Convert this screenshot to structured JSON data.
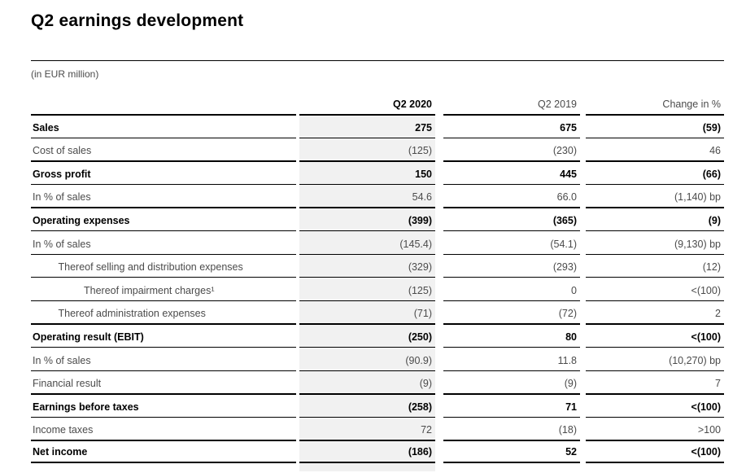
{
  "page": {
    "title": "Q2 earnings development",
    "unit_note": "(in EUR million)"
  },
  "table": {
    "header": {
      "label": "",
      "col1": "Q2 2020",
      "col2": "Q2 2019",
      "col3": "Change in %"
    },
    "rows": [
      {
        "label": "Sales",
        "q2_2020": "275",
        "q2_2019": "675",
        "change": "(59)",
        "bold": true,
        "indent": 0
      },
      {
        "label": "Cost of sales",
        "q2_2020": "(125)",
        "q2_2019": "(230)",
        "change": "46",
        "bold": false,
        "indent": 0
      },
      {
        "label": "Gross profit",
        "q2_2020": "150",
        "q2_2019": "445",
        "change": "(66)",
        "bold": true,
        "indent": 0
      },
      {
        "label": "In % of sales",
        "q2_2020": "54.6",
        "q2_2019": "66.0",
        "change": "(1,140) bp",
        "bold": false,
        "indent": 0
      },
      {
        "label": "Operating expenses",
        "q2_2020": "(399)",
        "q2_2019": "(365)",
        "change": "(9)",
        "bold": true,
        "indent": 0
      },
      {
        "label": "In % of sales",
        "q2_2020": "(145.4)",
        "q2_2019": "(54.1)",
        "change": "(9,130) bp",
        "bold": false,
        "indent": 0
      },
      {
        "label": "Thereof selling and distribution expenses",
        "q2_2020": "(329)",
        "q2_2019": "(293)",
        "change": "(12)",
        "bold": false,
        "indent": 1
      },
      {
        "label": "Thereof impairment charges¹",
        "q2_2020": "(125)",
        "q2_2019": "0",
        "change": "<(100)",
        "bold": false,
        "indent": 2
      },
      {
        "label": "Thereof administration expenses",
        "q2_2020": "(71)",
        "q2_2019": "(72)",
        "change": "2",
        "bold": false,
        "indent": 1
      },
      {
        "label": "Operating result (EBIT)",
        "q2_2020": "(250)",
        "q2_2019": "80",
        "change": "<(100)",
        "bold": true,
        "indent": 0
      },
      {
        "label": "In % of sales",
        "q2_2020": "(90.9)",
        "q2_2019": "11.8",
        "change": "(10,270) bp",
        "bold": false,
        "indent": 0
      },
      {
        "label": "Financial result",
        "q2_2020": "(9)",
        "q2_2019": "(9)",
        "change": "7",
        "bold": false,
        "indent": 0
      },
      {
        "label": "Earnings before taxes",
        "q2_2020": "(258)",
        "q2_2019": "71",
        "change": "<(100)",
        "bold": true,
        "indent": 0
      },
      {
        "label": "Income taxes",
        "q2_2020": "72",
        "q2_2019": "(18)",
        "change": ">100",
        "bold": false,
        "indent": 0
      },
      {
        "label": "Net income",
        "q2_2020": "(186)",
        "q2_2019": "52",
        "change": "<(100)",
        "bold": true,
        "indent": 0
      }
    ],
    "colors": {
      "highlight_column_bg": "#f1f1f1",
      "regular_text": "#4b4b4b",
      "emphasis_text": "#000000",
      "rule": "#000000"
    }
  }
}
